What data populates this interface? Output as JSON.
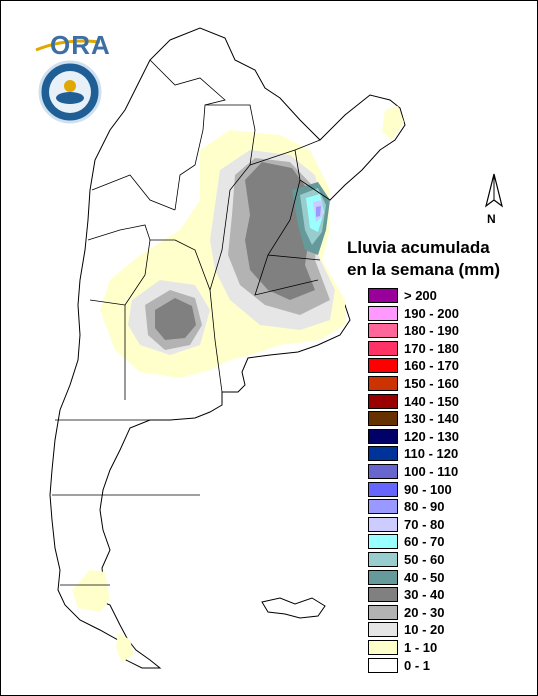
{
  "logo": {
    "text": "ORA"
  },
  "north_arrow": {
    "label": "N"
  },
  "legend": {
    "title_line1": "Lluvia acumulada",
    "title_line2": "en la semana (mm)",
    "items": [
      {
        "label": "> 200",
        "color": "#990099"
      },
      {
        "label": "190 - 200",
        "color": "#ff99ff"
      },
      {
        "label": "180 - 190",
        "color": "#ff6699"
      },
      {
        "label": "170 - 180",
        "color": "#ff3366"
      },
      {
        "label": "160 - 170",
        "color": "#ff0000"
      },
      {
        "label": "150 - 160",
        "color": "#cc3300"
      },
      {
        "label": "140 - 150",
        "color": "#990000"
      },
      {
        "label": "130 - 140",
        "color": "#663300"
      },
      {
        "label": "120 - 130",
        "color": "#000066"
      },
      {
        "label": "110 - 120",
        "color": "#003399"
      },
      {
        "label": "100 - 110",
        "color": "#6666cc"
      },
      {
        "label": "90 - 100",
        "color": "#6666ff"
      },
      {
        "label": "80 - 90",
        "color": "#9999ff"
      },
      {
        "label": "70 - 80",
        "color": "#ccccff"
      },
      {
        "label": "60 - 70",
        "color": "#99ffff"
      },
      {
        "label": "50 - 60",
        "color": "#99cccc"
      },
      {
        "label": "40 - 50",
        "color": "#669999"
      },
      {
        "label": "30 - 40",
        "color": "#808080"
      },
      {
        "label": "20 - 30",
        "color": "#b3b3b3"
      },
      {
        "label": "10 - 20",
        "color": "#e6e6e6"
      },
      {
        "label": "1 - 10",
        "color": "#ffffcc"
      },
      {
        "label": "0 - 1",
        "color": "#ffffff"
      }
    ]
  }
}
